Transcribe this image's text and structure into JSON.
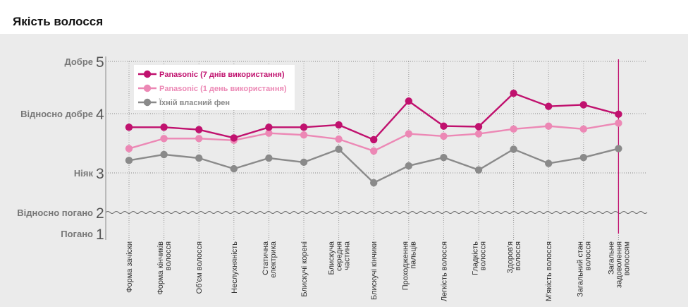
{
  "chart_data": {
    "type": "line",
    "title": "Якість волосся",
    "y_levels": [
      {
        "value": 5,
        "label": "Добре"
      },
      {
        "value": 4,
        "label": "Відносно добре"
      },
      {
        "value": 3,
        "label": "Ніяк"
      },
      {
        "value": 2,
        "label": "Відносно погано"
      },
      {
        "value": 1,
        "label": "Погано"
      }
    ],
    "categories": [
      [
        "Форма зачіски"
      ],
      [
        "Форма кінчиків",
        "волосся"
      ],
      [
        "Об'єм волосся"
      ],
      [
        "Неслухняність"
      ],
      [
        "Статична",
        "електрика"
      ],
      [
        "Блискучі корені"
      ],
      [
        "Блискуча",
        "середня",
        "частина"
      ],
      [
        "Блискучі кінчики"
      ],
      [
        "Проходження",
        "пальців"
      ],
      [
        "Легкість волосся"
      ],
      [
        "Гладкість",
        "волосся"
      ],
      [
        "Здоров'я",
        "волосся"
      ],
      [
        "М'якість волосся"
      ],
      [
        "Загальний стан",
        "волосся"
      ],
      [
        "Загальне",
        "задоволення",
        "волоссям"
      ]
    ],
    "series": [
      {
        "name": "Panasonic (7 днів використання)",
        "color": "#c0116e",
        "values": [
          3.77,
          3.77,
          3.73,
          3.59,
          3.77,
          3.77,
          3.81,
          3.56,
          4.24,
          3.79,
          3.78,
          4.39,
          4.14,
          4.17,
          3.99
        ]
      },
      {
        "name": "Panasonic (1 день використання)",
        "color": "#ec88b5",
        "values": [
          3.41,
          3.58,
          3.58,
          3.55,
          3.67,
          3.64,
          3.57,
          3.37,
          3.66,
          3.62,
          3.66,
          3.74,
          3.79,
          3.74,
          3.84
        ]
      },
      {
        "name": "Їхній власний фен",
        "color": "#8a8a8a",
        "values": [
          3.21,
          3.31,
          3.25,
          3.07,
          3.25,
          3.18,
          3.4,
          2.75,
          3.12,
          3.26,
          3.05,
          3.4,
          3.16,
          3.26,
          3.41
        ]
      }
    ],
    "ylim": [
      1,
      5
    ],
    "highlight_category_index": 14,
    "legend_position": "top-left"
  }
}
